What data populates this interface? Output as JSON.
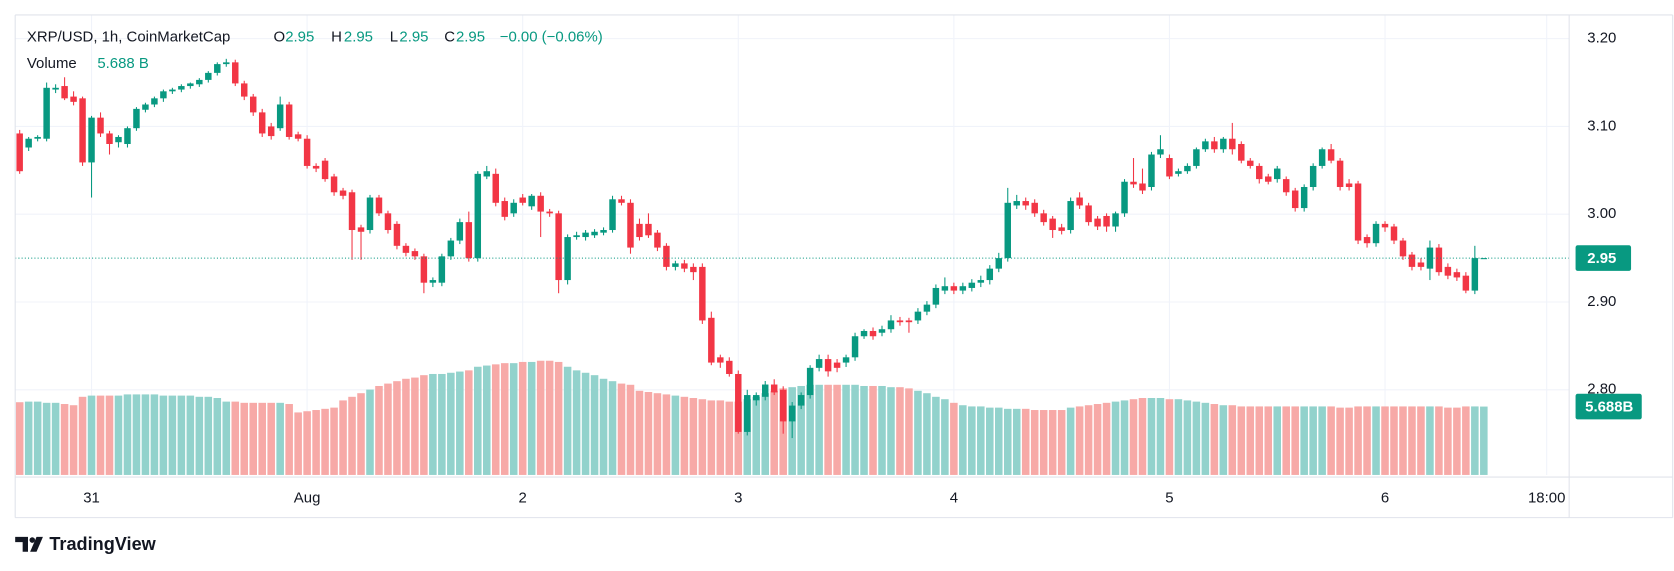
{
  "chart_data": {
    "type": "candlestick",
    "title": "XRP/USD, 1h, CoinMarketCap",
    "ohlc_labels": [
      "O",
      "H",
      "L",
      "C"
    ],
    "change_label": "−0.00 (−0.06%)",
    "volume_title": "Volume",
    "volume_labels": {
      "header": "5.688 B",
      "axis": "5.688B"
    },
    "up_color": "#089981",
    "down_color": "#f23645",
    "volume_up_color": "#92d2cc",
    "volume_down_color": "#f7a9a7",
    "grid": true,
    "last_price_line": true,
    "xlim": [
      -0.5,
      172.5
    ],
    "xticks": [
      {
        "value": 8,
        "label": "31"
      },
      {
        "value": 32,
        "label": "Aug"
      },
      {
        "value": 56,
        "label": "2"
      },
      {
        "value": 80,
        "label": "3"
      },
      {
        "value": 104,
        "label": "4"
      },
      {
        "value": 128,
        "label": "5"
      },
      {
        "value": 152,
        "label": "6"
      },
      {
        "value": 170,
        "label": "18:00"
      }
    ],
    "ylim": [
      2.703,
      3.227
    ],
    "yticks": [
      {
        "value": 2.8,
        "label": "2.80"
      },
      {
        "value": 2.9,
        "label": "2.90"
      },
      {
        "value": 3.0,
        "label": "3.00"
      },
      {
        "value": 3.1,
        "label": "3.10"
      },
      {
        "value": 3.2,
        "label": "3.20"
      }
    ],
    "open": [
      3.092,
      3.076,
      3.086,
      3.086,
      3.142,
      3.146,
      3.134,
      3.132,
      3.059,
      3.11,
      3.092,
      3.082,
      3.08,
      3.098,
      3.119,
      3.125,
      3.132,
      3.14,
      3.142,
      3.146,
      3.148,
      3.153,
      3.161,
      3.171,
      3.173,
      3.149,
      3.134,
      3.116,
      3.1,
      3.098,
      3.125,
      3.091,
      3.086,
      3.055,
      3.061,
      3.043,
      3.027,
      3.025,
      2.985,
      2.982,
      3.019,
      3.001,
      2.989,
      2.964,
      2.958,
      2.952,
      2.922,
      2.922,
      2.952,
      2.97,
      2.991,
      2.95,
      3.043,
      3.046,
      3.015,
      3.001,
      3.019,
      3.009,
      3.021,
      3.003,
      3.001,
      2.925,
      2.974,
      2.974,
      2.976,
      2.979,
      2.982,
      3.017,
      3.013,
      2.989,
      2.989,
      2.979,
      2.964,
      2.94,
      2.944,
      2.94,
      2.94,
      2.882,
      2.837,
      2.833,
      2.818,
      2.752,
      2.788,
      2.792,
      2.806,
      2.8,
      2.764,
      2.782,
      2.794,
      2.825,
      2.835,
      2.831,
      2.831,
      2.837,
      2.861,
      2.867,
      2.865,
      2.869,
      2.879,
      2.879,
      2.879,
      2.889,
      2.897,
      2.913,
      2.918,
      2.913,
      2.916,
      2.922,
      2.925,
      2.938,
      2.95,
      3.01,
      3.015,
      3.013,
      3.001,
      2.995,
      2.985,
      2.982,
      3.019,
      3.01,
      2.995,
      2.998,
      2.986,
      3.001,
      3.037,
      3.035,
      3.031,
      3.068,
      3.064,
      3.046,
      3.049,
      3.055,
      3.074,
      3.083,
      3.074,
      3.086,
      3.08,
      3.061,
      3.055,
      3.043,
      3.04,
      3.04,
      3.027,
      3.007,
      3.031,
      3.055,
      3.074,
      3.061,
      3.035,
      3.035,
      2.974,
      2.967,
      2.989,
      2.986,
      2.97,
      2.954,
      2.945,
      2.938,
      2.962,
      2.94,
      2.934,
      2.93,
      2.913,
      2.95
    ],
    "high": [
      3.096,
      3.088,
      3.09,
      3.15,
      3.148,
      3.156,
      3.14,
      3.134,
      3.112,
      3.116,
      3.095,
      3.09,
      3.1,
      3.122,
      3.127,
      3.134,
      3.142,
      3.144,
      3.148,
      3.15,
      3.155,
      3.163,
      3.173,
      3.177,
      3.176,
      3.152,
      3.137,
      3.12,
      3.104,
      3.134,
      3.128,
      3.094,
      3.09,
      3.058,
      3.064,
      3.046,
      3.03,
      3.028,
      2.988,
      3.022,
      3.022,
      3.004,
      2.992,
      2.967,
      2.961,
      2.955,
      2.928,
      2.955,
      2.973,
      2.995,
      3.003,
      3.049,
      3.055,
      3.052,
      3.019,
      3.017,
      3.023,
      3.023,
      3.025,
      3.006,
      3.004,
      2.977,
      2.98,
      2.982,
      2.983,
      2.985,
      3.021,
      3.021,
      3.017,
      2.995,
      3.001,
      2.982,
      2.967,
      2.947,
      2.948,
      2.944,
      2.944,
      2.889,
      2.84,
      2.837,
      2.822,
      2.8,
      2.797,
      2.81,
      2.812,
      2.804,
      2.786,
      2.797,
      2.828,
      2.84,
      2.84,
      2.835,
      2.84,
      2.865,
      2.869,
      2.871,
      2.873,
      2.885,
      2.883,
      2.882,
      2.893,
      2.901,
      2.92,
      2.928,
      2.922,
      2.922,
      2.926,
      2.93,
      2.942,
      2.956,
      3.03,
      3.022,
      3.019,
      3.017,
      3.005,
      2.998,
      2.989,
      3.019,
      3.025,
      3.013,
      2.998,
      3.001,
      3.003,
      3.04,
      3.064,
      3.052,
      3.071,
      3.09,
      3.068,
      3.052,
      3.058,
      3.076,
      3.086,
      3.088,
      3.088,
      3.104,
      3.083,
      3.064,
      3.058,
      3.046,
      3.055,
      3.043,
      3.03,
      3.034,
      3.058,
      3.076,
      3.08,
      3.064,
      3.04,
      3.038,
      2.977,
      2.992,
      2.992,
      2.989,
      2.973,
      2.957,
      2.95,
      2.97,
      2.966,
      2.944,
      2.938,
      2.934,
      2.964,
      2.95
    ],
    "low": [
      3.046,
      3.072,
      3.083,
      3.083,
      3.138,
      3.13,
      3.124,
      3.055,
      3.019,
      3.088,
      3.068,
      3.076,
      3.076,
      3.095,
      3.116,
      3.122,
      3.128,
      3.137,
      3.139,
      3.143,
      3.145,
      3.15,
      3.158,
      3.168,
      3.146,
      3.13,
      3.112,
      3.088,
      3.085,
      3.095,
      3.085,
      3.083,
      3.052,
      3.048,
      3.037,
      3.021,
      3.017,
      2.948,
      2.948,
      2.978,
      2.998,
      2.978,
      2.96,
      2.952,
      2.948,
      2.91,
      2.917,
      2.918,
      2.948,
      2.966,
      2.946,
      2.946,
      3.04,
      3.009,
      2.993,
      2.997,
      3.01,
      3.005,
      2.974,
      2.997,
      2.91,
      2.92,
      2.971,
      2.97,
      2.973,
      2.976,
      2.979,
      3.01,
      2.955,
      2.97,
      2.973,
      2.958,
      2.936,
      2.936,
      2.934,
      2.925,
      2.875,
      2.828,
      2.825,
      2.815,
      2.75,
      2.748,
      2.782,
      2.788,
      2.794,
      2.75,
      2.745,
      2.778,
      2.79,
      2.821,
      2.815,
      2.82,
      2.826,
      2.833,
      2.858,
      2.857,
      2.861,
      2.865,
      2.873,
      2.865,
      2.875,
      2.885,
      2.893,
      2.909,
      2.909,
      2.909,
      2.912,
      2.917,
      2.92,
      2.934,
      2.946,
      3.006,
      3.005,
      2.997,
      2.987,
      2.973,
      2.977,
      2.978,
      3.006,
      2.987,
      2.982,
      2.98,
      2.98,
      2.997,
      3.03,
      3.023,
      3.027,
      3.064,
      3.04,
      3.043,
      3.046,
      3.052,
      3.071,
      3.07,
      3.07,
      3.068,
      3.058,
      3.052,
      3.035,
      3.034,
      3.036,
      3.021,
      3.003,
      3.003,
      3.027,
      3.052,
      3.058,
      3.027,
      3.027,
      2.966,
      2.962,
      2.963,
      2.98,
      2.966,
      2.948,
      2.936,
      2.936,
      2.925,
      2.93,
      2.926,
      2.924,
      2.91,
      2.909,
      2.95
    ],
    "close": [
      3.049,
      3.086,
      3.088,
      3.144,
      3.144,
      3.132,
      3.128,
      3.059,
      3.11,
      3.092,
      3.08,
      3.088,
      3.098,
      3.12,
      3.125,
      3.132,
      3.14,
      3.142,
      3.146,
      3.149,
      3.153,
      3.161,
      3.171,
      3.173,
      3.149,
      3.134,
      3.116,
      3.092,
      3.089,
      3.125,
      3.088,
      3.086,
      3.055,
      3.052,
      3.04,
      3.025,
      3.021,
      2.982,
      2.98,
      3.019,
      3.001,
      2.982,
      2.964,
      2.956,
      2.952,
      2.922,
      2.925,
      2.952,
      2.97,
      2.991,
      2.95,
      3.046,
      3.049,
      3.013,
      2.997,
      3.013,
      3.013,
      3.021,
      3.003,
      3.001,
      2.925,
      2.974,
      2.976,
      2.979,
      2.98,
      2.982,
      3.017,
      3.013,
      2.962,
      2.974,
      2.976,
      2.962,
      2.94,
      2.944,
      2.938,
      2.934,
      2.879,
      2.831,
      2.831,
      2.818,
      2.752,
      2.794,
      2.794,
      2.806,
      2.797,
      2.764,
      2.782,
      2.794,
      2.825,
      2.835,
      2.821,
      2.825,
      2.837,
      2.861,
      2.867,
      2.861,
      2.869,
      2.879,
      2.877,
      2.877,
      2.889,
      2.897,
      2.916,
      2.918,
      2.913,
      2.918,
      2.922,
      2.925,
      2.938,
      2.95,
      3.013,
      3.015,
      3.01,
      3.001,
      2.991,
      2.982,
      2.981,
      3.015,
      3.01,
      2.991,
      2.986,
      2.986,
      3.001,
      3.037,
      3.034,
      3.027,
      3.068,
      3.074,
      3.043,
      3.049,
      3.055,
      3.074,
      3.083,
      3.074,
      3.086,
      3.074,
      3.061,
      3.055,
      3.04,
      3.037,
      3.052,
      3.025,
      3.007,
      3.031,
      3.055,
      3.074,
      3.061,
      3.031,
      3.031,
      2.97,
      2.967,
      2.989,
      2.985,
      2.97,
      2.952,
      2.94,
      2.94,
      2.962,
      2.934,
      2.93,
      2.928,
      2.913,
      2.95,
      2.95
    ],
    "volume": [
      6.05,
      6.1,
      6.1,
      6.0,
      6.0,
      5.9,
      5.8,
      6.5,
      6.6,
      6.6,
      6.6,
      6.6,
      6.7,
      6.7,
      6.7,
      6.7,
      6.6,
      6.6,
      6.6,
      6.6,
      6.5,
      6.5,
      6.4,
      6.1,
      6.1,
      6.0,
      6.0,
      6.0,
      6.0,
      6.0,
      5.9,
      5.2,
      5.3,
      5.4,
      5.5,
      5.6,
      6.2,
      6.5,
      6.8,
      7.1,
      7.4,
      7.6,
      7.8,
      8.0,
      8.1,
      8.3,
      8.4,
      8.4,
      8.5,
      8.6,
      8.7,
      9.0,
      9.1,
      9.2,
      9.3,
      9.3,
      9.4,
      9.4,
      9.5,
      9.5,
      9.4,
      9.0,
      8.7,
      8.5,
      8.3,
      8.0,
      7.8,
      7.6,
      7.5,
      7.0,
      6.9,
      6.8,
      6.7,
      6.6,
      6.5,
      6.4,
      6.3,
      6.2,
      6.2,
      6.1,
      6.1,
      6.3,
      6.5,
      6.8,
      7.0,
      7.2,
      7.3,
      7.4,
      7.5,
      7.5,
      7.5,
      7.5,
      7.5,
      7.5,
      7.4,
      7.4,
      7.4,
      7.3,
      7.3,
      7.2,
      7.0,
      6.8,
      6.5,
      6.3,
      6.0,
      5.8,
      5.7,
      5.7,
      5.6,
      5.6,
      5.5,
      5.5,
      5.5,
      5.4,
      5.4,
      5.4,
      5.4,
      5.6,
      5.7,
      5.8,
      5.9,
      6.0,
      6.1,
      6.2,
      6.3,
      6.4,
      6.4,
      6.4,
      6.3,
      6.3,
      6.2,
      6.1,
      6.0,
      5.9,
      5.8,
      5.8,
      5.7,
      5.7,
      5.7,
      5.7,
      5.7,
      5.7,
      5.7,
      5.7,
      5.7,
      5.7,
      5.7,
      5.6,
      5.6,
      5.7,
      5.7,
      5.7,
      5.7,
      5.7,
      5.7,
      5.7,
      5.7,
      5.7,
      5.7,
      5.6,
      5.6,
      5.7,
      5.7,
      5.688
    ]
  },
  "footer": {
    "brand": "TradingView"
  }
}
